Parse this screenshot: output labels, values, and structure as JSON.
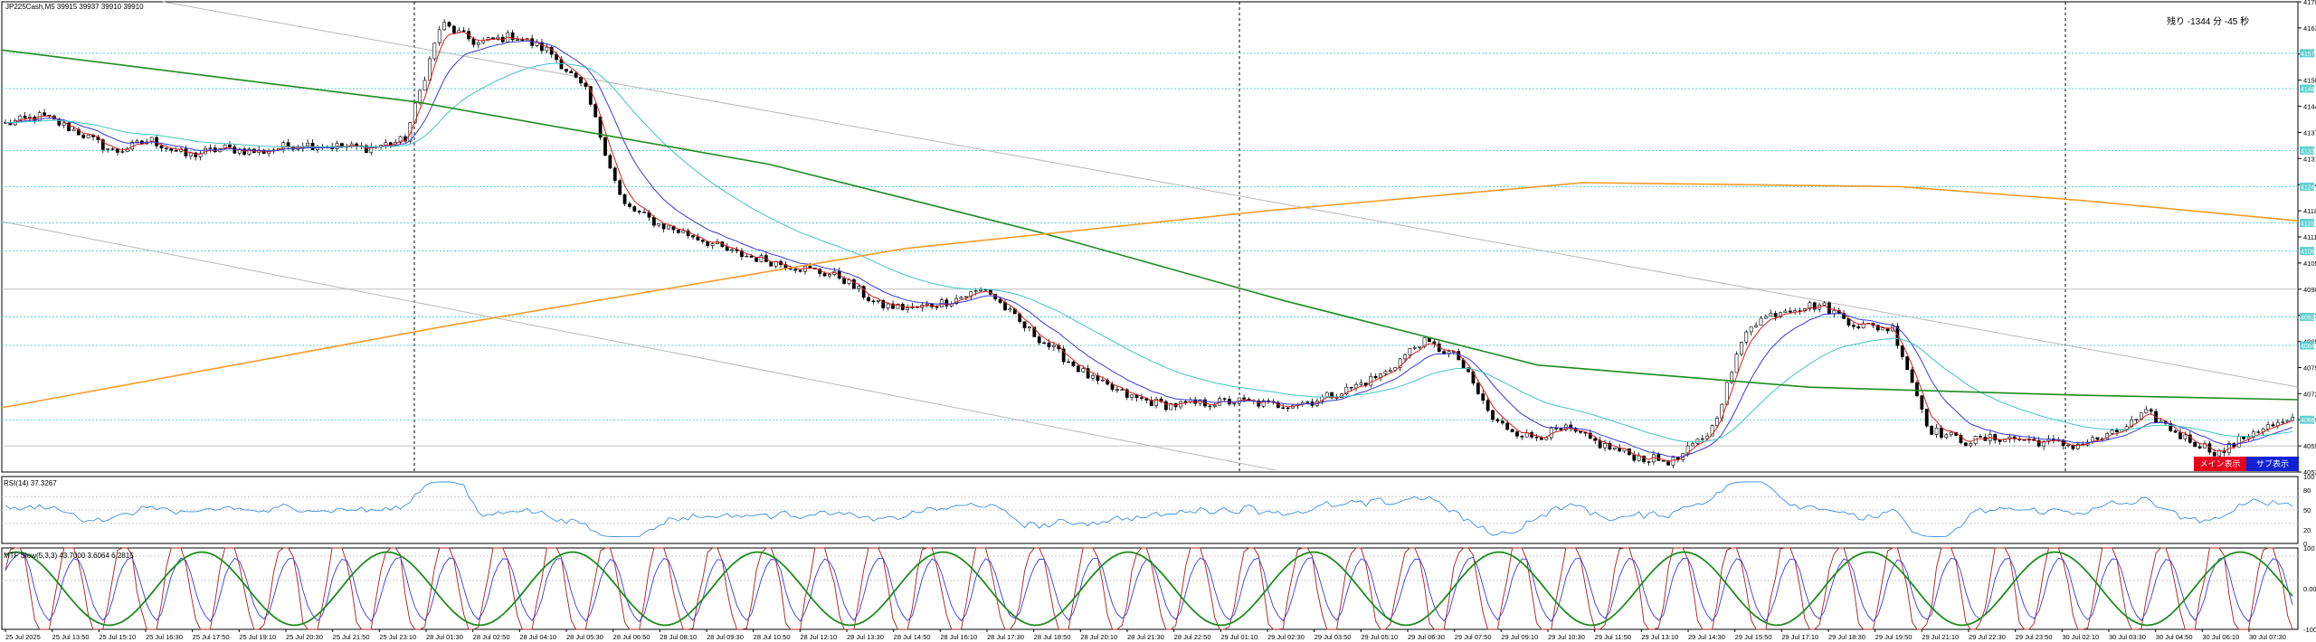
{
  "header": {
    "symbol_info": "JP225Cash,M5  39915 39937 39910 39910",
    "countdown": "残り -1344 分 -45 秒"
  },
  "buttons": {
    "main": "メイン表示",
    "sub": "サブ表示"
  },
  "colors": {
    "candle_up": "#ffffff",
    "candle_down": "#000000",
    "ma_fast": "#d62020",
    "ma_mid": "#3b3bd6",
    "ma_slow": "#40c4c4",
    "ma_green": "#1e8c1e",
    "ma_orange": "#f39c2c",
    "levels": "#5fd0d0",
    "rsi": "#3a8fe0",
    "stoch_main": "#a52020",
    "stoch_signal": "#3b3bd6",
    "stoch_long": "#1e8c1e",
    "btn_main": "#e8001c",
    "btn_sub": "#1021d6"
  },
  "chart_data": [
    {
      "type": "candlestick",
      "price_axis_ticks": [
        "41704",
        "41639",
        "41574",
        "41509",
        "41444",
        "41379",
        "41314",
        "41249",
        "41184",
        "41119",
        "41054",
        "40989",
        "40924",
        "40859",
        "40794",
        "40729",
        "40664",
        "40599",
        "40534"
      ],
      "highlighted_levels": [
        "41576",
        "41488",
        "41334",
        "41244",
        "41154",
        "41084",
        "40920",
        "40849",
        "40664"
      ],
      "ylim": [
        40534,
        41704
      ],
      "x_tick_labels": [
        "25 Jul 2025",
        "25 Jul 13:50",
        "25 Jul 15:10",
        "25 Jul 16:30",
        "25 Jul 17:50",
        "25 Jul 19:10",
        "25 Jul 20:30",
        "25 Jul 21:50",
        "25 Jul 23:10",
        "28 Jul 01:30",
        "28 Jul 02:50",
        "28 Jul 04:10",
        "28 Jul 05:30",
        "28 Jul 06:50",
        "28 Jul 08:10",
        "28 Jul 09:30",
        "28 Jul 10:50",
        "28 Jul 12:10",
        "28 Jul 13:30",
        "28 Jul 14:50",
        "28 Jul 16:10",
        "28 Jul 17:30",
        "28 Jul 18:50",
        "28 Jul 20:10",
        "28 Jul 21:30",
        "28 Jul 22:50",
        "29 Jul 01:10",
        "29 Jul 02:30",
        "29 Jul 03:50",
        "29 Jul 05:10",
        "29 Jul 06:30",
        "29 Jul 07:50",
        "29 Jul 09:10",
        "29 Jul 10:30",
        "29 Jul 11:50",
        "29 Jul 13:10",
        "29 Jul 14:30",
        "29 Jul 15:50",
        "29 Jul 17:10",
        "29 Jul 18:30",
        "29 Jul 19:50",
        "29 Jul 21:10",
        "29 Jul 22:30",
        "29 Jul 23:50",
        "30 Jul 02:10",
        "30 Jul 03:30",
        "30 Jul 04:50",
        "30 Jul 06:10",
        "30 Jul 07:30"
      ],
      "close_path": [
        41400,
        41420,
        41380,
        41330,
        41360,
        41320,
        41340,
        41330,
        41350,
        41345,
        41340,
        41360,
        41650,
        41600,
        41620,
        41580,
        41480,
        41200,
        41150,
        41120,
        41080,
        41060,
        41040,
        41020,
        40950,
        40940,
        40960,
        40990,
        40900,
        40830,
        40760,
        40720,
        40700,
        40705,
        40710,
        40700,
        40710,
        40740,
        40780,
        40860,
        40820,
        40660,
        40620,
        40640,
        40600,
        40570,
        40560,
        40640,
        40900,
        40940,
        40950,
        40900,
        40890,
        40640,
        40610,
        40620,
        40610,
        40600,
        40625,
        40680,
        40620,
        40580,
        40640,
        40660
      ]
    },
    {
      "type": "line",
      "title": "RSI(14) 37.3267",
      "ylim": [
        0,
        100
      ],
      "y_ticks": [
        "100",
        "80",
        "50",
        "20",
        "0"
      ]
    },
    {
      "type": "line",
      "title": "MTF Slow(5,3,3) 43.7000 3.6064 6.2815",
      "ylim": [
        0,
        100
      ],
      "y_ticks": [
        "100",
        "0.00",
        "-100"
      ]
    }
  ]
}
